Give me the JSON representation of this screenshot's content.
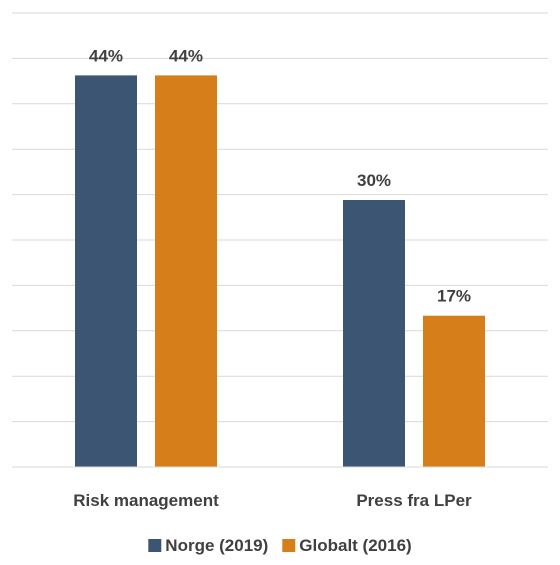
{
  "chart_data": {
    "type": "bar",
    "categories": [
      "Risk management",
      "Press fra LPer"
    ],
    "series": [
      {
        "name": "Norge (2019)",
        "color": "#3b5573",
        "values": [
          44,
          30
        ],
        "labels": [
          "44%",
          "30%"
        ]
      },
      {
        "name": "Globalt (2016)",
        "color": "#d67e1a",
        "values": [
          44,
          17
        ],
        "labels": [
          "44%",
          "17%"
        ]
      }
    ],
    "title": "",
    "xlabel": "",
    "ylabel": "",
    "ylim": [
      0,
      50
    ],
    "grid": true,
    "legend_position": "bottom"
  }
}
